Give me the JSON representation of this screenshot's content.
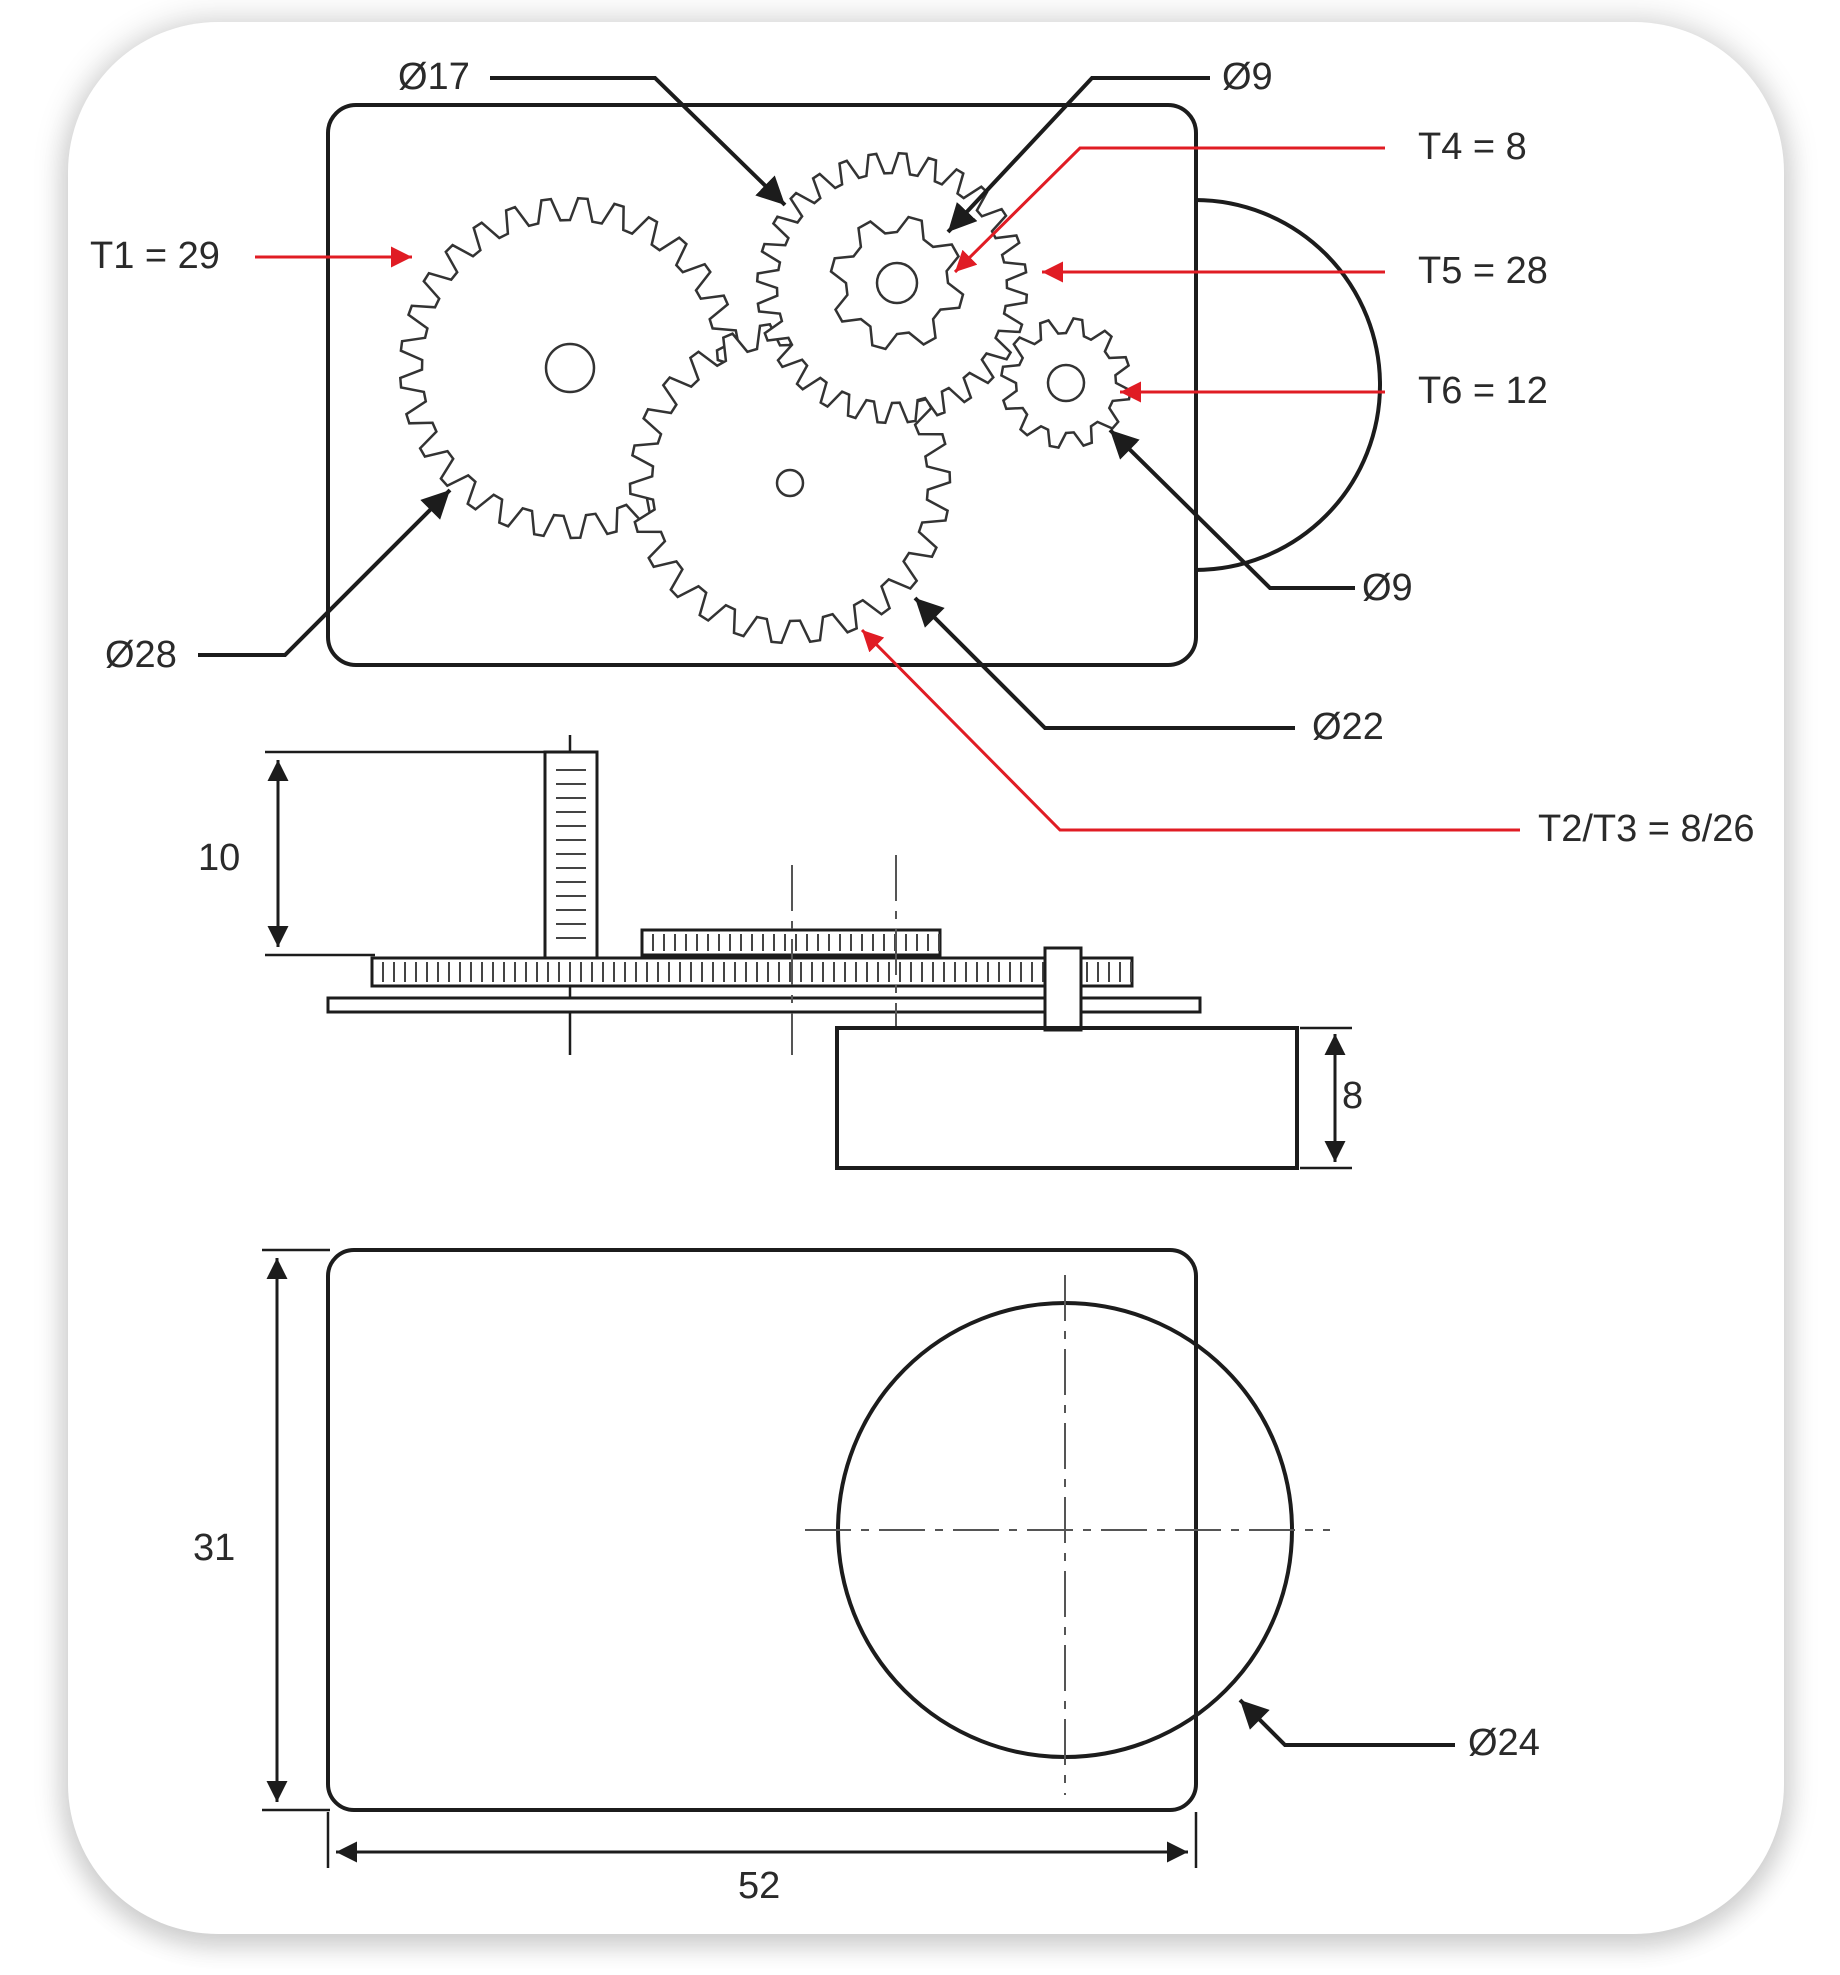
{
  "labels": {
    "d17": "Ø17",
    "d9_top": "Ø9",
    "t4": "T4 = 8",
    "t1": "T1 = 29",
    "t5": "T5 = 28",
    "t6": "T6 = 12",
    "d9_right": "Ø9",
    "d28": "Ø28",
    "d22": "Ø22",
    "t23": "T2/T3 = 8/26",
    "dim10": "10",
    "dim8": "8",
    "dim31": "31",
    "d24": "Ø24",
    "dim52": "52"
  },
  "gears": [
    {
      "name": "gear-t1",
      "teeth": 29
    },
    {
      "name": "gear-t3",
      "teeth": 26
    },
    {
      "name": "gear-t5",
      "teeth": 28
    },
    {
      "name": "gear-t4",
      "teeth": 8
    },
    {
      "name": "gear-t6",
      "teeth": 12
    }
  ],
  "colors": {
    "leader_red": "#e01c24",
    "line": "#1c1c1c"
  }
}
